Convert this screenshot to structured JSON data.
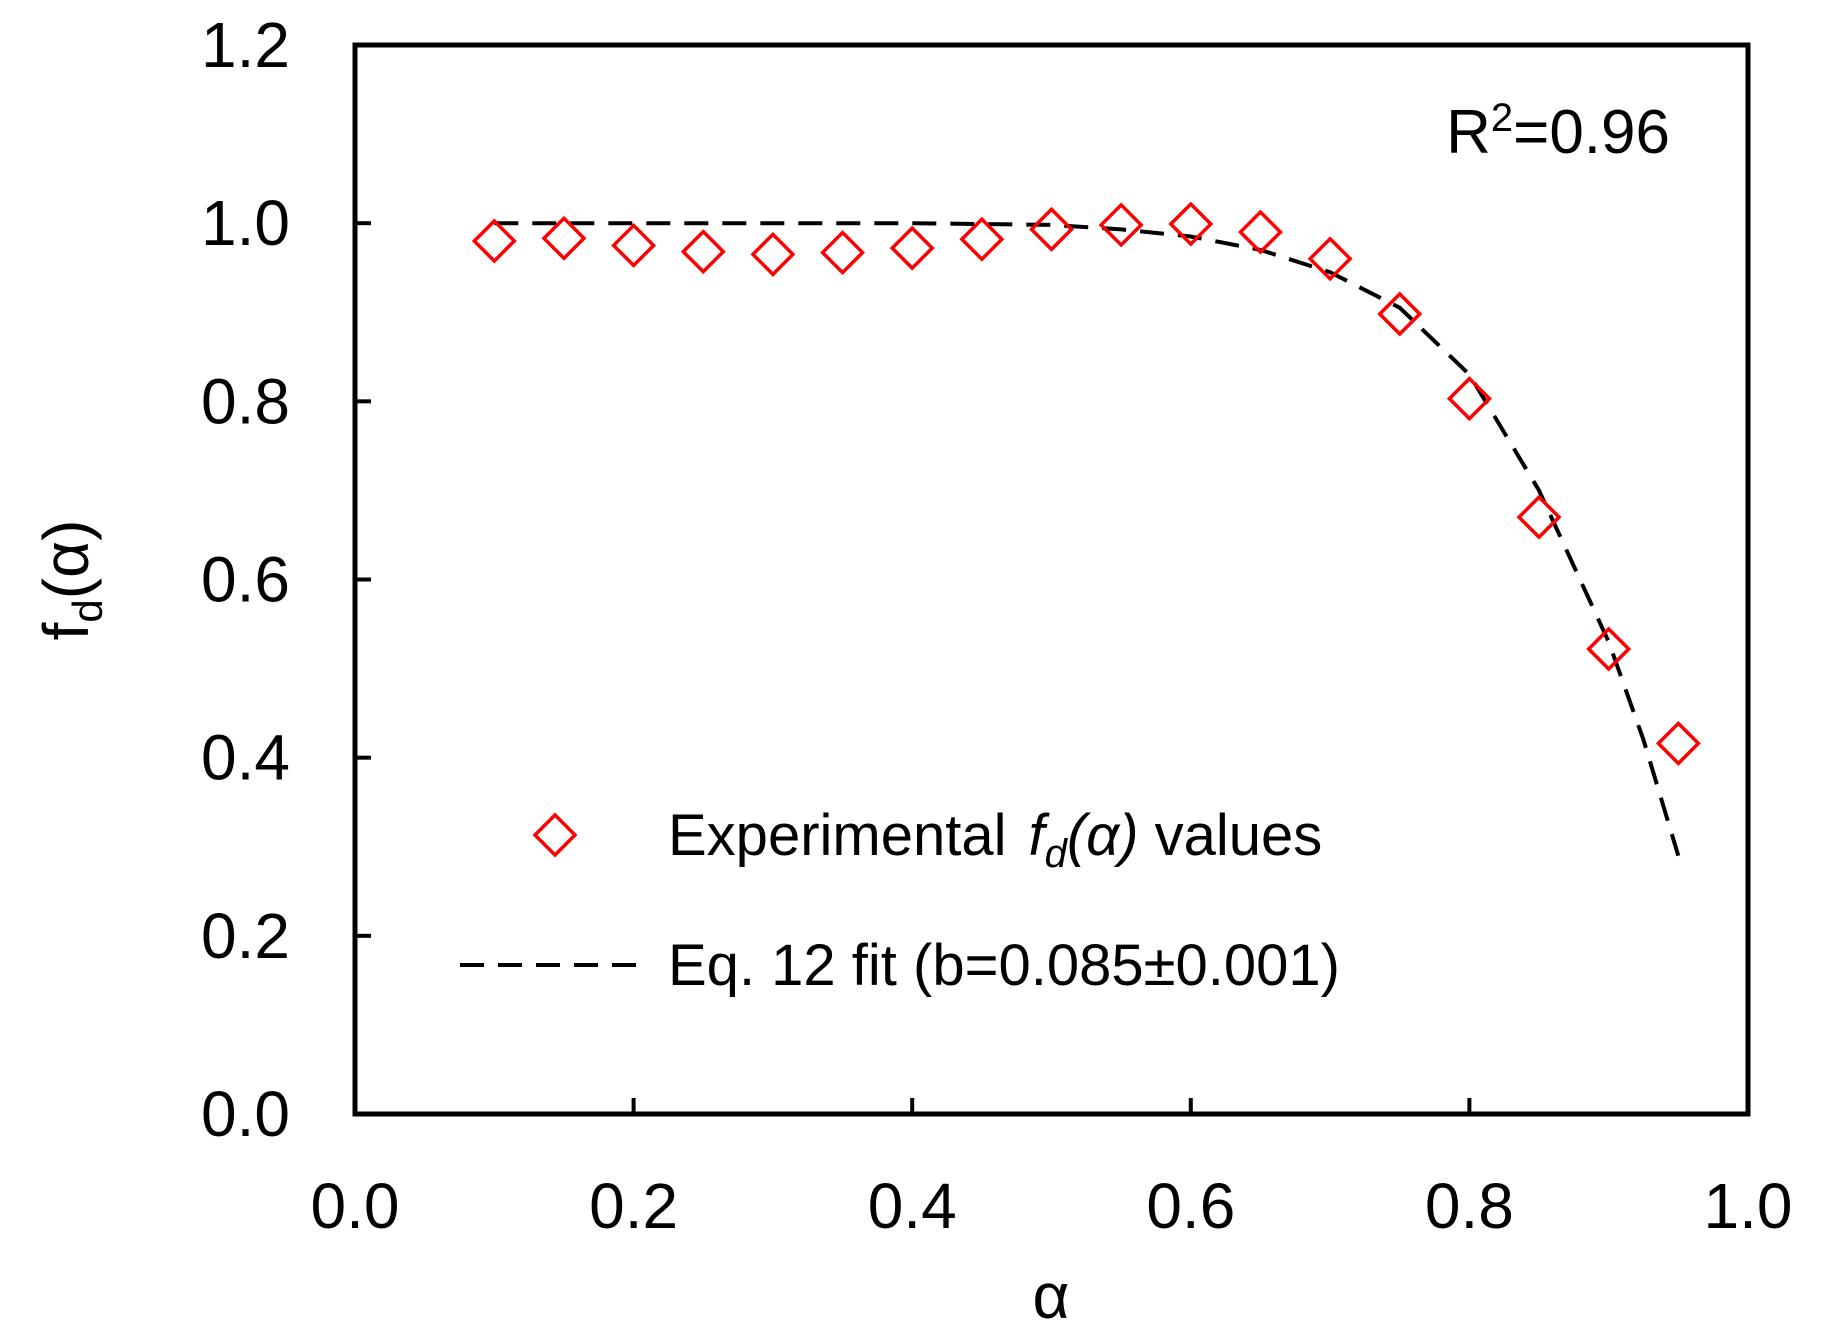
{
  "chart_data": {
    "type": "scatter",
    "title": "",
    "xlabel": "α",
    "ylabel": {
      "base": "f",
      "sub": "d",
      "rest": "(α)"
    },
    "xlim": [
      0.0,
      1.0
    ],
    "ylim": [
      0.0,
      1.2
    ],
    "xticks": [
      "0.0",
      "0.2",
      "0.4",
      "0.6",
      "0.8",
      "1.0"
    ],
    "yticks": [
      "0.0",
      "0.2",
      "0.4",
      "0.6",
      "0.8",
      "1.0",
      "1.2"
    ],
    "grid": false,
    "legend_position": "bottom-center",
    "annotation": {
      "base": "R",
      "sup": "2",
      "rest": "=0.96"
    },
    "series": [
      {
        "name": "Experimental f_d(α) values",
        "legend": {
          "prefix": "Experimental",
          "italic_base": "f",
          "italic_sub": "d",
          "italic_rest": "(α)",
          "suffix": "values"
        },
        "kind": "scatter",
        "marker": "diamond-open",
        "color": "#ff0000",
        "x": [
          0.1,
          0.15,
          0.2,
          0.25,
          0.3,
          0.35,
          0.4,
          0.45,
          0.5,
          0.55,
          0.6,
          0.65,
          0.7,
          0.75,
          0.8,
          0.85,
          0.9,
          0.95
        ],
        "y": [
          0.98,
          0.983,
          0.975,
          0.968,
          0.965,
          0.967,
          0.972,
          0.982,
          0.993,
          0.998,
          0.999,
          0.99,
          0.96,
          0.898,
          0.803,
          0.67,
          0.522,
          0.416
        ]
      },
      {
        "name": "Eq. 12 fit (b=0.085±0.001)",
        "legend_text": "Eq. 12 fit (b=0.085±0.001)",
        "kind": "line",
        "style": "dashed",
        "color": "#000000",
        "x": [
          0.1,
          0.2,
          0.3,
          0.4,
          0.5,
          0.55,
          0.6,
          0.65,
          0.7,
          0.75,
          0.8,
          0.85,
          0.9,
          0.925,
          0.95
        ],
        "y": [
          1.0,
          1.0,
          1.0,
          1.0,
          0.998,
          0.993,
          0.985,
          0.97,
          0.945,
          0.905,
          0.83,
          0.7,
          0.53,
          0.42,
          0.29
        ]
      }
    ]
  }
}
